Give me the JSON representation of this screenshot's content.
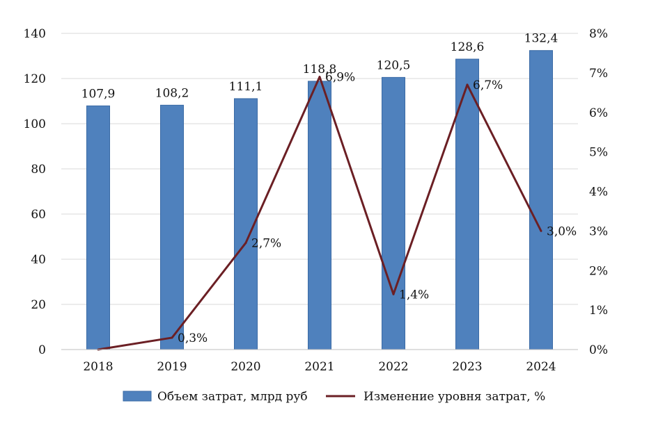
{
  "chart_data": {
    "type": "bar",
    "title": "",
    "xlabel": "",
    "ylabel": "",
    "categories": [
      "2018",
      "2019",
      "2020",
      "2021",
      "2022",
      "2023",
      "2024"
    ],
    "ylim": [
      0,
      140
    ],
    "y_ticks": [
      0,
      20,
      40,
      60,
      80,
      100,
      120,
      140
    ],
    "y2lim": [
      0,
      8
    ],
    "y2_ticks": [
      "0%",
      "1%",
      "2%",
      "3%",
      "4%",
      "5%",
      "6%",
      "7%",
      "8%"
    ],
    "grid": true,
    "legend_position": "bottom",
    "series": [
      {
        "name": "Объем затрат, млрд руб",
        "type": "bar",
        "axis": "left",
        "color": "#4f81bd",
        "values": [
          107.9,
          108.2,
          111.1,
          118.8,
          120.5,
          128.6,
          132.4
        ],
        "labels": [
          "107,9",
          "108,2",
          "111,1",
          "118,8",
          "120,5",
          "128,6",
          "132,4"
        ]
      },
      {
        "name": "Изменение уровня затрат, %",
        "type": "line",
        "axis": "right",
        "color": "#6b1f24",
        "values": [
          0.0,
          0.3,
          2.7,
          6.9,
          1.4,
          6.7,
          3.0
        ],
        "labels": [
          "",
          "0,3%",
          "2,7%",
          "6,9%",
          "1,4%",
          "6,7%",
          "3,0%"
        ]
      }
    ]
  }
}
